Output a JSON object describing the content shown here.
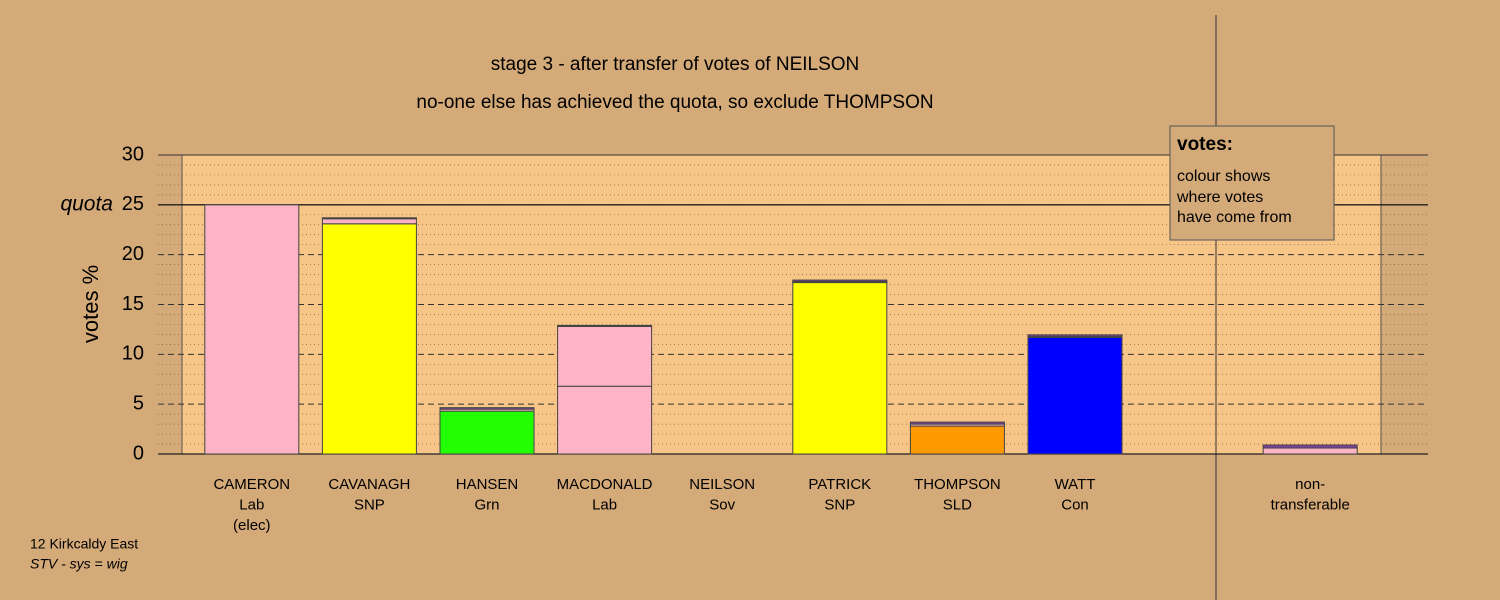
{
  "chart_data": {
    "type": "bar",
    "stacked": true,
    "title": "stage 3 - after transfer of votes of NEILSON",
    "subtitle": "no-one else has achieved the quota, so exclude THOMPSON",
    "y_label": "votes %",
    "categories": [
      [
        "CAMERON",
        "Lab",
        "(elec)"
      ],
      [
        "CAVANAGH",
        "SNP"
      ],
      [
        "HANSEN",
        "Grn"
      ],
      [
        "MACDONALD",
        "Lab"
      ],
      [
        "NEILSON",
        "Sov"
      ],
      [
        "PATRICK",
        "SNP"
      ],
      [
        "THOMPSON",
        "SLD"
      ],
      [
        "WATT",
        "Con"
      ],
      [
        "non-",
        "transferable"
      ]
    ],
    "series": [
      {
        "color": "#ffb3c6",
        "values": [
          25,
          null,
          null,
          6.8,
          null,
          null,
          null,
          null,
          null
        ]
      },
      {
        "color": "#ffff00",
        "values": [
          null,
          23.1,
          null,
          null,
          null,
          17.2,
          null,
          null,
          null
        ]
      },
      {
        "color": "#22ff00",
        "values": [
          null,
          null,
          4.3,
          null,
          null,
          null,
          null,
          null,
          null
        ]
      },
      {
        "color": "#ff9900",
        "values": [
          null,
          null,
          null,
          null,
          null,
          null,
          2.8,
          null,
          null
        ]
      },
      {
        "color": "#0000ff",
        "values": [
          null,
          null,
          null,
          null,
          null,
          null,
          null,
          11.7,
          null
        ]
      },
      {
        "color": "#ffb3c6",
        "values": [
          null,
          0.5,
          0.2,
          6.0,
          null,
          0.1,
          0.2,
          0.1,
          0.6
        ]
      },
      {
        "color": "#8040a0",
        "values": [
          null,
          0.1,
          0.15,
          0.1,
          null,
          0.15,
          0.2,
          0.15,
          0.3
        ]
      }
    ],
    "ylim": [
      0,
      30
    ],
    "yticks": [
      0,
      5,
      10,
      15,
      20,
      25,
      30
    ],
    "minor_yticks": [
      1,
      2,
      3,
      4,
      6,
      7,
      8,
      9,
      11,
      12,
      13,
      14,
      16,
      17,
      18,
      19,
      21,
      22,
      23,
      24,
      26,
      27,
      28,
      29
    ],
    "quota": 25,
    "quota_label": "quota",
    "legend_box": {
      "title": "votes:",
      "lines": [
        "colour shows",
        "where votes",
        "have come from"
      ]
    },
    "footnote": [
      "12 Kirkcaldy East",
      "STV - sys = wig"
    ]
  }
}
